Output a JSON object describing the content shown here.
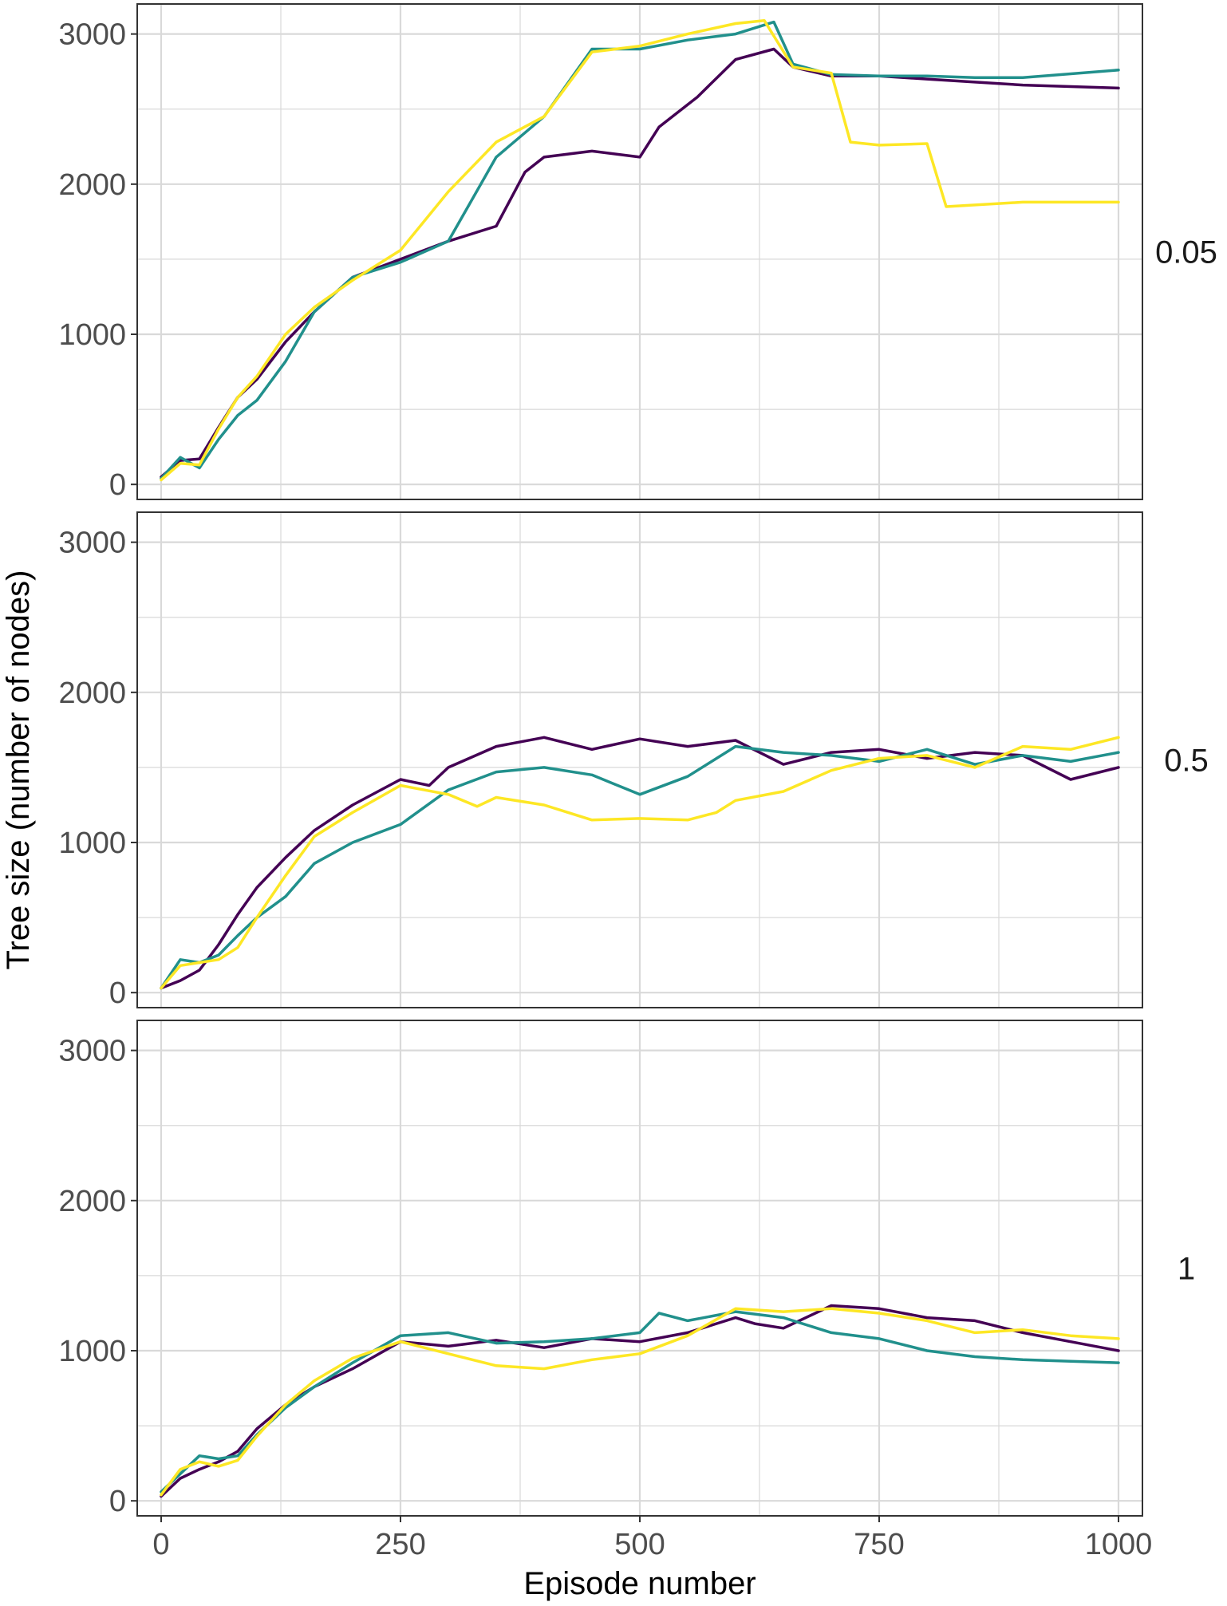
{
  "colors": {
    "series_a": "#440154",
    "series_b": "#21908C",
    "series_c": "#FDE725",
    "grid": "#d9d9d9",
    "panel_border": "#333333"
  },
  "chart_data": {
    "type": "line",
    "xlabel": "Episode number",
    "ylabel": "Tree size (number of nodes)",
    "xlim": [
      -25,
      1025
    ],
    "ylim": [
      -100,
      3200
    ],
    "x_ticks": [
      0,
      250,
      500,
      750,
      1000
    ],
    "x_tick_labels": [
      "0",
      "250",
      "500",
      "750",
      "1000"
    ],
    "y_ticks": [
      0,
      1000,
      2000,
      3000
    ],
    "y_tick_labels": [
      "0",
      "1000",
      "2000",
      "3000"
    ],
    "grid": true,
    "legend": "none",
    "panels": [
      {
        "label": "0.05",
        "series": [
          {
            "color": "#440154",
            "x": [
              0,
              20,
              40,
              60,
              80,
              100,
              130,
              160,
              200,
              250,
              300,
              350,
              380,
              400,
              450,
              500,
              520,
              560,
              600,
              640,
              660,
              700,
              750,
              800,
              850,
              900,
              1000
            ],
            "y": [
              50,
              160,
              170,
              380,
              580,
              700,
              950,
              1150,
              1380,
              1500,
              1620,
              1720,
              2080,
              2180,
              2220,
              2180,
              2380,
              2580,
              2830,
              2900,
              2780,
              2720,
              2720,
              2700,
              2680,
              2660,
              2640
            ]
          },
          {
            "color": "#21908C",
            "x": [
              0,
              20,
              40,
              60,
              80,
              100,
              130,
              160,
              200,
              250,
              300,
              350,
              400,
              450,
              500,
              550,
              600,
              640,
              660,
              700,
              750,
              800,
              850,
              900,
              1000
            ],
            "y": [
              40,
              180,
              110,
              300,
              460,
              560,
              820,
              1150,
              1380,
              1480,
              1620,
              2180,
              2450,
              2900,
              2900,
              2960,
              3000,
              3080,
              2800,
              2730,
              2720,
              2720,
              2710,
              2710,
              2760
            ]
          },
          {
            "color": "#FDE725",
            "x": [
              0,
              20,
              40,
              60,
              80,
              100,
              130,
              160,
              200,
              250,
              300,
              350,
              400,
              450,
              500,
              550,
              600,
              630,
              660,
              700,
              720,
              750,
              800,
              820,
              900,
              1000
            ],
            "y": [
              30,
              140,
              130,
              370,
              580,
              720,
              1000,
              1180,
              1360,
              1560,
              1950,
              2280,
              2450,
              2880,
              2920,
              3000,
              3070,
              3090,
              2780,
              2740,
              2280,
              2260,
              2270,
              1850,
              1880,
              1880
            ]
          }
        ]
      },
      {
        "label": "0.5",
        "series": [
          {
            "color": "#440154",
            "x": [
              0,
              20,
              40,
              60,
              80,
              100,
              130,
              160,
              200,
              250,
              280,
              300,
              350,
              400,
              450,
              500,
              550,
              600,
              650,
              700,
              750,
              800,
              850,
              900,
              950,
              1000
            ],
            "y": [
              30,
              80,
              150,
              320,
              520,
              700,
              900,
              1080,
              1250,
              1420,
              1380,
              1500,
              1640,
              1700,
              1620,
              1690,
              1640,
              1680,
              1520,
              1600,
              1620,
              1560,
              1600,
              1580,
              1420,
              1500
            ]
          },
          {
            "color": "#21908C",
            "x": [
              0,
              20,
              40,
              60,
              80,
              100,
              130,
              160,
              200,
              250,
              300,
              350,
              400,
              450,
              500,
              550,
              600,
              650,
              700,
              750,
              800,
              850,
              900,
              950,
              1000
            ],
            "y": [
              30,
              220,
              200,
              250,
              380,
              500,
              640,
              860,
              1000,
              1120,
              1350,
              1470,
              1500,
              1450,
              1320,
              1440,
              1640,
              1600,
              1580,
              1540,
              1620,
              1520,
              1580,
              1540,
              1600
            ]
          },
          {
            "color": "#FDE725",
            "x": [
              0,
              20,
              40,
              60,
              80,
              100,
              130,
              160,
              200,
              250,
              300,
              330,
              350,
              400,
              450,
              500,
              550,
              580,
              600,
              650,
              700,
              750,
              800,
              850,
              900,
              950,
              1000
            ],
            "y": [
              30,
              180,
              200,
              220,
              300,
              500,
              780,
              1040,
              1200,
              1380,
              1320,
              1240,
              1300,
              1250,
              1150,
              1160,
              1150,
              1200,
              1280,
              1340,
              1480,
              1560,
              1580,
              1500,
              1640,
              1620,
              1700
            ]
          }
        ]
      },
      {
        "label": "1",
        "series": [
          {
            "color": "#440154",
            "x": [
              0,
              20,
              40,
              60,
              80,
              100,
              130,
              160,
              200,
              250,
              300,
              350,
              400,
              450,
              500,
              550,
              600,
              620,
              650,
              700,
              750,
              800,
              850,
              900,
              950,
              1000
            ],
            "y": [
              30,
              150,
              210,
              260,
              330,
              480,
              640,
              760,
              880,
              1060,
              1030,
              1070,
              1020,
              1080,
              1060,
              1120,
              1220,
              1180,
              1150,
              1300,
              1280,
              1220,
              1200,
              1120,
              1060,
              1000
            ]
          },
          {
            "color": "#21908C",
            "x": [
              0,
              20,
              40,
              60,
              80,
              100,
              130,
              160,
              200,
              250,
              300,
              350,
              400,
              450,
              500,
              520,
              550,
              600,
              650,
              700,
              750,
              800,
              850,
              900,
              950,
              1000
            ],
            "y": [
              60,
              180,
              300,
              280,
              300,
              440,
              620,
              760,
              920,
              1100,
              1120,
              1050,
              1060,
              1080,
              1120,
              1250,
              1200,
              1260,
              1220,
              1120,
              1080,
              1000,
              960,
              940,
              930,
              920
            ]
          },
          {
            "color": "#FDE725",
            "x": [
              0,
              20,
              40,
              60,
              80,
              100,
              130,
              160,
              200,
              250,
              300,
              350,
              400,
              450,
              500,
              550,
              600,
              650,
              700,
              750,
              800,
              850,
              900,
              950,
              1000
            ],
            "y": [
              40,
              210,
              260,
              230,
              270,
              430,
              640,
              800,
              950,
              1060,
              980,
              900,
              880,
              940,
              980,
              1100,
              1280,
              1260,
              1280,
              1250,
              1200,
              1120,
              1140,
              1100,
              1080
            ]
          }
        ]
      }
    ]
  }
}
